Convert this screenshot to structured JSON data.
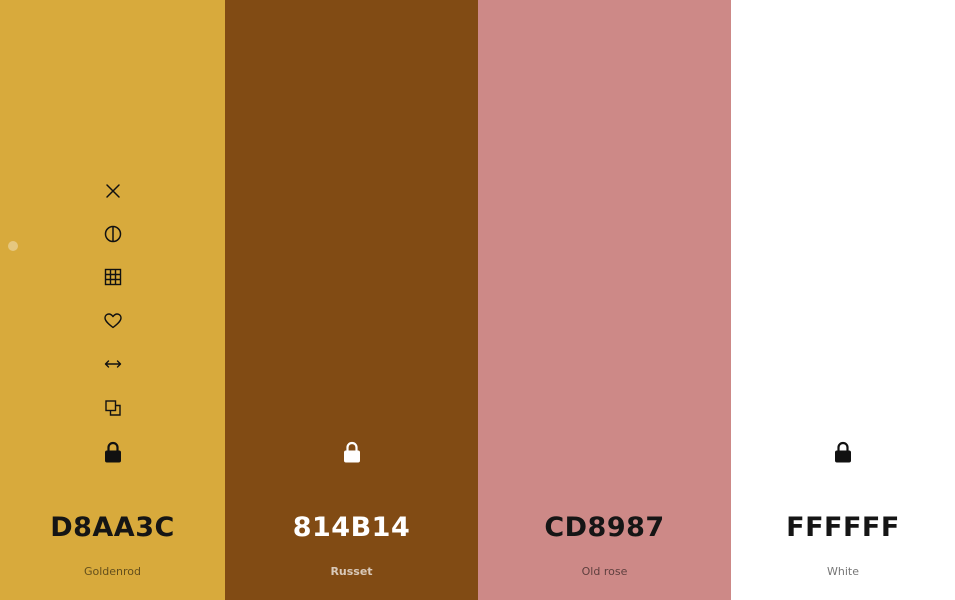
{
  "swatches": [
    {
      "hex": "D8AA3C",
      "name": "Goldenrod",
      "color": "#D8AA3C",
      "text_theme": "dark"
    },
    {
      "hex": "814B14",
      "name": "Russet",
      "color": "#814B14",
      "text_theme": "light"
    },
    {
      "hex": "CD8987",
      "name": "Old rose",
      "color": "#CD8987",
      "text_theme": "dark"
    },
    {
      "hex": "FFFFFF",
      "name": "White",
      "color": "#FFFFFF",
      "text_theme": "dark"
    }
  ],
  "tools": [
    "close-icon",
    "contrast-icon",
    "shades-grid-icon",
    "favorite-heart-icon",
    "drag-arrows-icon",
    "copy-icon",
    "lock-icon"
  ]
}
